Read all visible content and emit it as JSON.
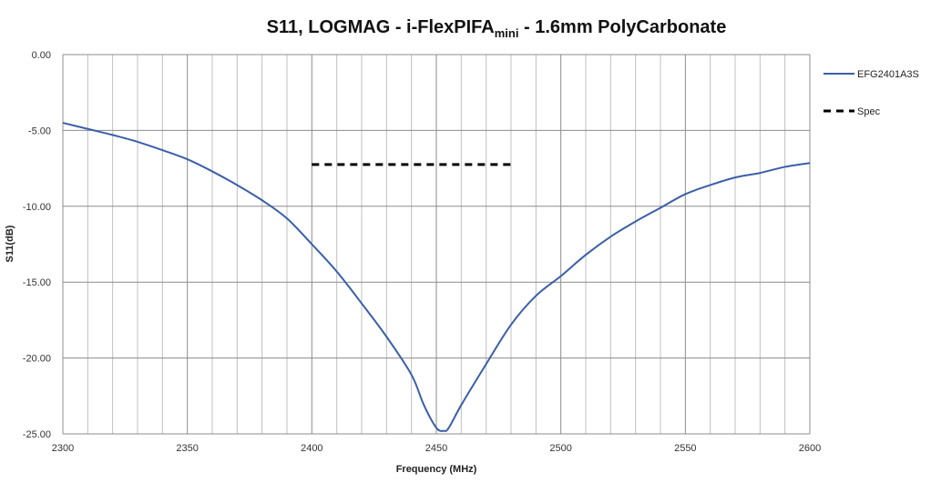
{
  "chart_data": {
    "type": "line",
    "title": {
      "main": "S11, LOGMAG - i-FlexPIFA",
      "sub": "mini",
      "rest": " - 1.6mm PolyCarbonate"
    },
    "xlabel": "Frequency (MHz)",
    "ylabel": "S11(dB)",
    "xlim": [
      2300,
      2600
    ],
    "ylim": [
      -25,
      0
    ],
    "xticks": [
      "2300",
      "2350",
      "2400",
      "2450",
      "2500",
      "2550",
      "2600"
    ],
    "yticks": [
      "0.00",
      "-5.00",
      "-10.00",
      "-15.00",
      "-20.00",
      "-25.00"
    ],
    "grid": {
      "vertical_major_step": 50,
      "vertical_minor_step": 10,
      "horizontal_step": 5
    },
    "legend_position": "right",
    "series": [
      {
        "name": "EFG2401A3S",
        "color": "#3a5fa8",
        "style": "solid",
        "x": [
          2300,
          2310,
          2320,
          2330,
          2340,
          2350,
          2360,
          2370,
          2380,
          2390,
          2400,
          2410,
          2420,
          2430,
          2440,
          2445,
          2450,
          2453,
          2455,
          2460,
          2470,
          2480,
          2490,
          2500,
          2510,
          2520,
          2530,
          2540,
          2550,
          2560,
          2570,
          2580,
          2590,
          2600
        ],
        "y": [
          -4.5,
          -4.9,
          -5.3,
          -5.75,
          -6.3,
          -6.9,
          -7.7,
          -8.6,
          -9.6,
          -10.8,
          -12.5,
          -14.3,
          -16.4,
          -18.6,
          -21.1,
          -23.1,
          -24.6,
          -24.8,
          -24.6,
          -23.1,
          -20.4,
          -17.8,
          -15.9,
          -14.6,
          -13.2,
          -12.0,
          -11.0,
          -10.1,
          -9.2,
          -8.6,
          -8.1,
          -7.8,
          -7.4,
          -7.15
        ]
      },
      {
        "name": "Spec",
        "color": "#000000",
        "style": "dashed",
        "x": [
          2400,
          2480
        ],
        "y": [
          -7.25,
          -7.25
        ]
      }
    ]
  }
}
